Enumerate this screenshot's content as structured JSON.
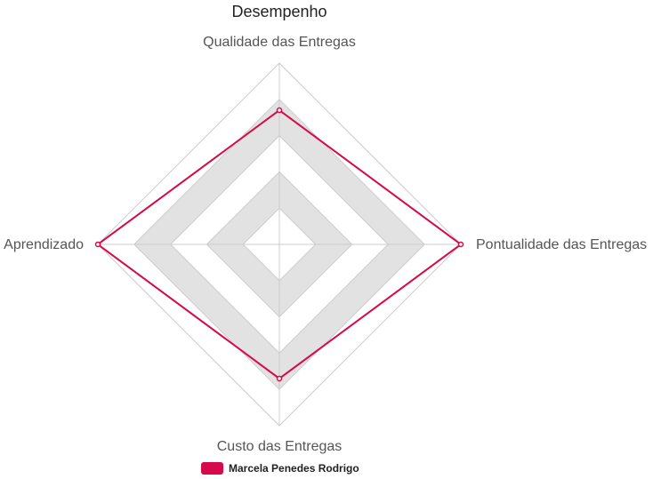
{
  "chart_data": {
    "type": "radar",
    "title": "Desempenho",
    "axes": [
      "Qualidade das Entregas",
      "Pontualidade das Entregas",
      "Custo das Entregas",
      "Aprendizado"
    ],
    "scale": {
      "min": 0,
      "max": 5,
      "rings": 5
    },
    "grid": true,
    "legend": "bottom",
    "series": [
      {
        "name": "Marcela Penedes Rodrigo",
        "values": [
          3.7,
          5,
          3.7,
          5
        ],
        "color": "#d6094a"
      }
    ]
  },
  "colors": {
    "band": "#e2e2e2",
    "grid_line": "#cccccc",
    "series": "#d6094a"
  }
}
